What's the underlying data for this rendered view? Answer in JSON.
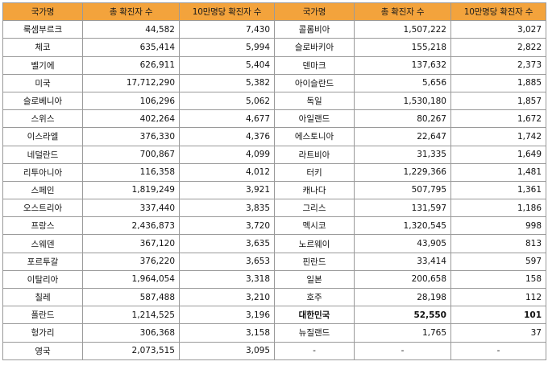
{
  "table": {
    "headers": [
      "국가명",
      "총 확진자 수",
      "10만명당 확진자 수",
      "국가명",
      "총 확진자 수",
      "10만명당 확진자 수"
    ],
    "rows": [
      {
        "left": [
          "룩셈부르크",
          "44,582",
          "7,430"
        ],
        "right": [
          "콜롬비아",
          "1,507,222",
          "3,027"
        ]
      },
      {
        "left": [
          "체코",
          "635,414",
          "5,994"
        ],
        "right": [
          "슬로바키아",
          "155,218",
          "2,822"
        ]
      },
      {
        "left": [
          "벨기에",
          "626,911",
          "5,404"
        ],
        "right": [
          "덴마크",
          "137,632",
          "2,373"
        ]
      },
      {
        "left": [
          "미국",
          "17,712,290",
          "5,382"
        ],
        "right": [
          "아이슬란드",
          "5,656",
          "1,885"
        ]
      },
      {
        "left": [
          "슬로베니아",
          "106,296",
          "5,062"
        ],
        "right": [
          "독일",
          "1,530,180",
          "1,857"
        ]
      },
      {
        "left": [
          "스위스",
          "402,264",
          "4,677"
        ],
        "right": [
          "아일랜드",
          "80,267",
          "1,672"
        ]
      },
      {
        "left": [
          "이스라엘",
          "376,330",
          "4,376"
        ],
        "right": [
          "에스토니아",
          "22,647",
          "1,742"
        ]
      },
      {
        "left": [
          "네덜란드",
          "700,867",
          "4,099"
        ],
        "right": [
          "라트비아",
          "31,335",
          "1,649"
        ]
      },
      {
        "left": [
          "리투아니아",
          "116,358",
          "4,012"
        ],
        "right": [
          "터키",
          "1,229,366",
          "1,481"
        ]
      },
      {
        "left": [
          "스페인",
          "1,819,249",
          "3,921"
        ],
        "right": [
          "캐나다",
          "507,795",
          "1,361"
        ]
      },
      {
        "left": [
          "오스트리아",
          "337,440",
          "3,835"
        ],
        "right": [
          "그리스",
          "131,597",
          "1,186"
        ]
      },
      {
        "left": [
          "프랑스",
          "2,436,873",
          "3,720"
        ],
        "right": [
          "멕시코",
          "1,320,545",
          "998"
        ]
      },
      {
        "left": [
          "스웨덴",
          "367,120",
          "3,635"
        ],
        "right": [
          "노르웨이",
          "43,905",
          "813"
        ]
      },
      {
        "left": [
          "포르투갈",
          "376,220",
          "3,653"
        ],
        "right": [
          "핀란드",
          "33,414",
          "597"
        ]
      },
      {
        "left": [
          "이탈리아",
          "1,964,054",
          "3,318"
        ],
        "right": [
          "일본",
          "200,658",
          "158"
        ]
      },
      {
        "left": [
          "칠레",
          "587,488",
          "3,210"
        ],
        "right": [
          "호주",
          "28,198",
          "112"
        ]
      },
      {
        "left": [
          "폴란드",
          "1,214,525",
          "3,196"
        ],
        "right": [
          "대한민국",
          "52,550",
          "101"
        ],
        "highlight_right": true
      },
      {
        "left": [
          "헝가리",
          "306,368",
          "3,158"
        ],
        "right": [
          "뉴질랜드",
          "1,765",
          "37"
        ]
      },
      {
        "left": [
          "영국",
          "2,073,515",
          "3,095"
        ],
        "right": [
          "-",
          "-",
          "-"
        ]
      }
    ]
  }
}
